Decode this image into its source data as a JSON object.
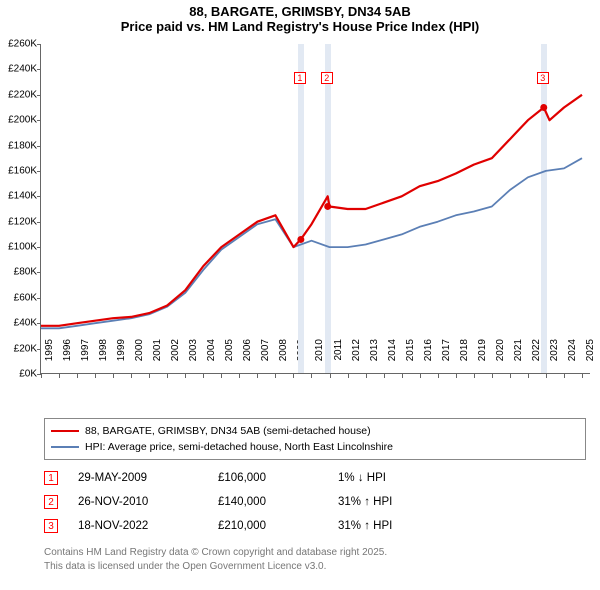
{
  "title": {
    "line1": "88, BARGATE, GRIMSBY, DN34 5AB",
    "line2": "Price paid vs. HM Land Registry's House Price Index (HPI)"
  },
  "chart": {
    "type": "line",
    "background_color": "#ffffff",
    "axis_color": "#666666",
    "xlim": [
      1995,
      2025.5
    ],
    "ylim": [
      0,
      260
    ],
    "ytick_step": 20,
    "ytick_prefix": "£",
    "ytick_suffix": "K",
    "xtick_step": 1,
    "xtick_labels": [
      "1995",
      "1996",
      "1997",
      "1998",
      "1999",
      "2000",
      "2001",
      "2002",
      "2003",
      "2004",
      "2005",
      "2006",
      "2007",
      "2008",
      "2009",
      "2010",
      "2011",
      "2012",
      "2013",
      "2014",
      "2015",
      "2016",
      "2017",
      "2018",
      "2019",
      "2020",
      "2021",
      "2022",
      "2023",
      "2024",
      "2025"
    ],
    "series": [
      {
        "name": "price_paid",
        "color": "#e00000",
        "width": 2.2,
        "points": [
          [
            1995,
            38
          ],
          [
            1996,
            38
          ],
          [
            1997,
            40
          ],
          [
            1998,
            42
          ],
          [
            1999,
            44
          ],
          [
            2000,
            45
          ],
          [
            2001,
            48
          ],
          [
            2002,
            54
          ],
          [
            2003,
            66
          ],
          [
            2004,
            85
          ],
          [
            2005,
            100
          ],
          [
            2006,
            110
          ],
          [
            2007,
            120
          ],
          [
            2008,
            125
          ],
          [
            2009,
            100
          ],
          [
            2009.4,
            106
          ],
          [
            2010,
            118
          ],
          [
            2010.9,
            140
          ],
          [
            2011,
            132
          ],
          [
            2012,
            130
          ],
          [
            2013,
            130
          ],
          [
            2014,
            135
          ],
          [
            2015,
            140
          ],
          [
            2016,
            148
          ],
          [
            2017,
            152
          ],
          [
            2018,
            158
          ],
          [
            2019,
            165
          ],
          [
            2020,
            170
          ],
          [
            2021,
            185
          ],
          [
            2022,
            200
          ],
          [
            2022.88,
            210
          ],
          [
            2023.2,
            200
          ],
          [
            2024,
            210
          ],
          [
            2025,
            220
          ]
        ]
      },
      {
        "name": "hpi",
        "color": "#5b7fb5",
        "width": 1.8,
        "points": [
          [
            1995,
            36
          ],
          [
            1996,
            36
          ],
          [
            1997,
            38
          ],
          [
            1998,
            40
          ],
          [
            1999,
            42
          ],
          [
            2000,
            44
          ],
          [
            2001,
            47
          ],
          [
            2002,
            53
          ],
          [
            2003,
            64
          ],
          [
            2004,
            82
          ],
          [
            2005,
            98
          ],
          [
            2006,
            108
          ],
          [
            2007,
            118
          ],
          [
            2008,
            122
          ],
          [
            2009,
            100
          ],
          [
            2010,
            105
          ],
          [
            2011,
            100
          ],
          [
            2012,
            100
          ],
          [
            2013,
            102
          ],
          [
            2014,
            106
          ],
          [
            2015,
            110
          ],
          [
            2016,
            116
          ],
          [
            2017,
            120
          ],
          [
            2018,
            125
          ],
          [
            2019,
            128
          ],
          [
            2020,
            132
          ],
          [
            2021,
            145
          ],
          [
            2022,
            155
          ],
          [
            2023,
            160
          ],
          [
            2024,
            162
          ],
          [
            2025,
            170
          ]
        ]
      }
    ],
    "events": [
      {
        "id": "1",
        "x": 2009.41,
        "date": "29-MAY-2009",
        "price": "£106,000",
        "pct": "1% ↓ HPI"
      },
      {
        "id": "2",
        "x": 2010.9,
        "date": "26-NOV-2010",
        "price": "£140,000",
        "pct": "31% ↑ HPI"
      },
      {
        "id": "3",
        "x": 2022.88,
        "date": "18-NOV-2022",
        "price": "£210,000",
        "pct": "31% ↑ HPI"
      }
    ],
    "event_marker_y": 238,
    "event_band_color": "#e2e9f3",
    "event_band_width_years": 0.35
  },
  "legend": {
    "items": [
      {
        "color": "#e00000",
        "label": "88, BARGATE, GRIMSBY, DN34 5AB (semi-detached house)"
      },
      {
        "color": "#5b7fb5",
        "label": "HPI: Average price, semi-detached house, North East Lincolnshire"
      }
    ]
  },
  "footer": {
    "line1": "Contains HM Land Registry data © Crown copyright and database right 2025.",
    "line2": "This data is licensed under the Open Government Licence v3.0."
  }
}
